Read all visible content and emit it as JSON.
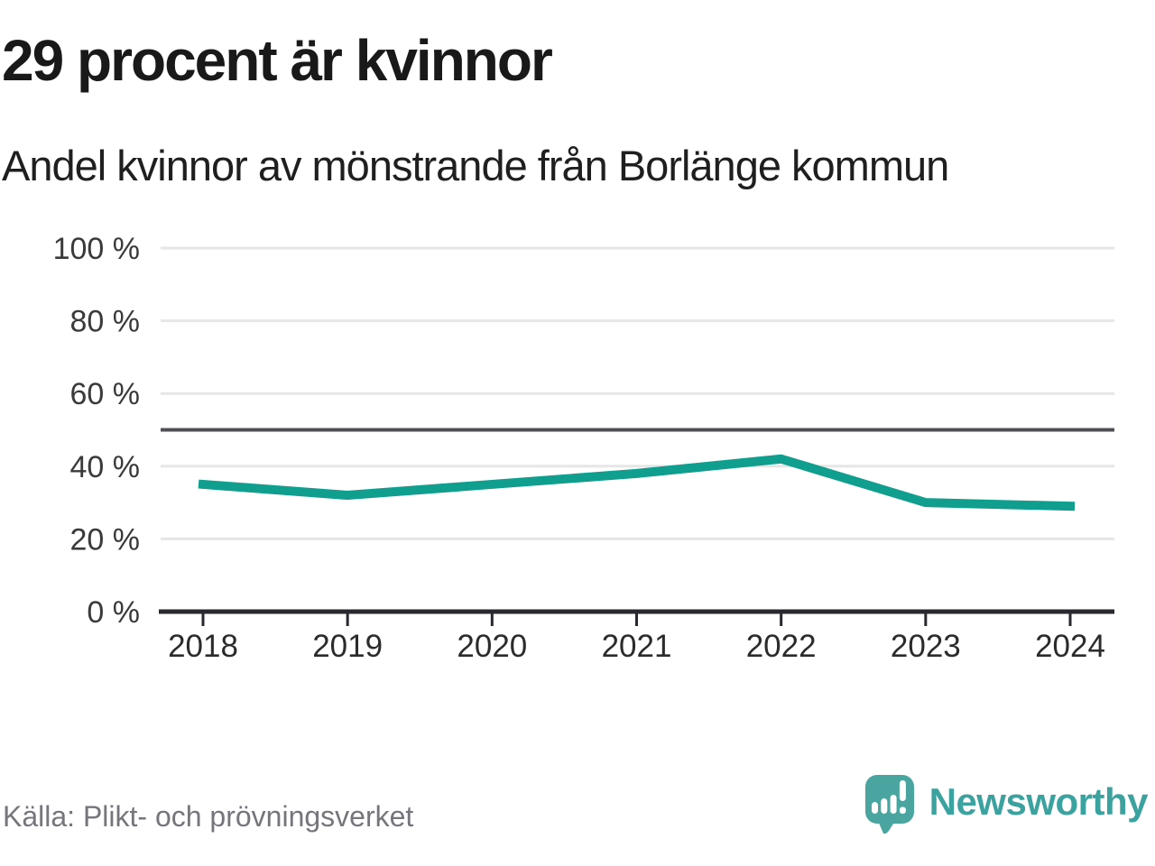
{
  "header": {
    "title": "29 procent är kvinnor",
    "subtitle": "Andel kvinnor av mönstrande från Borlänge kommun"
  },
  "chart_data": {
    "type": "line",
    "title": "29 procent är kvinnor",
    "subtitle": "Andel kvinnor av mönstrande från Borlänge kommun",
    "x": [
      2018,
      2019,
      2020,
      2021,
      2022,
      2023,
      2024
    ],
    "xtick_labels": [
      "2018",
      "2019",
      "2020",
      "2021",
      "2022",
      "2023",
      "2024"
    ],
    "series": [
      {
        "name": "Andel kvinnor av mönstrande",
        "values": [
          35,
          32,
          35,
          38,
          42,
          30,
          29
        ]
      }
    ],
    "unit": "%",
    "ylim": [
      0,
      100
    ],
    "yticks": [
      0,
      20,
      40,
      60,
      80,
      100
    ],
    "ytick_labels": [
      "0 %",
      "20 %",
      "40 %",
      "60 %",
      "80 %",
      "100 %"
    ],
    "reference_line": {
      "value": 50
    },
    "grid": true,
    "legend": false,
    "line_color": "#109e8e"
  },
  "footer": {
    "source": "Källa: Plikt- och prövningsverket",
    "brand": "Newsworthy"
  },
  "colors": {
    "accent_teal": "#109e8e",
    "reference_gray": "#4f4f5a",
    "grid_gray": "#e6e6e6",
    "axis_dark": "#28282e",
    "tick_label": "#3a3a3a",
    "title_text": "#191919",
    "muted_text": "#75757c",
    "logo_teal": "#4aa5a1",
    "wordmark_teal": "#3ba29f"
  }
}
